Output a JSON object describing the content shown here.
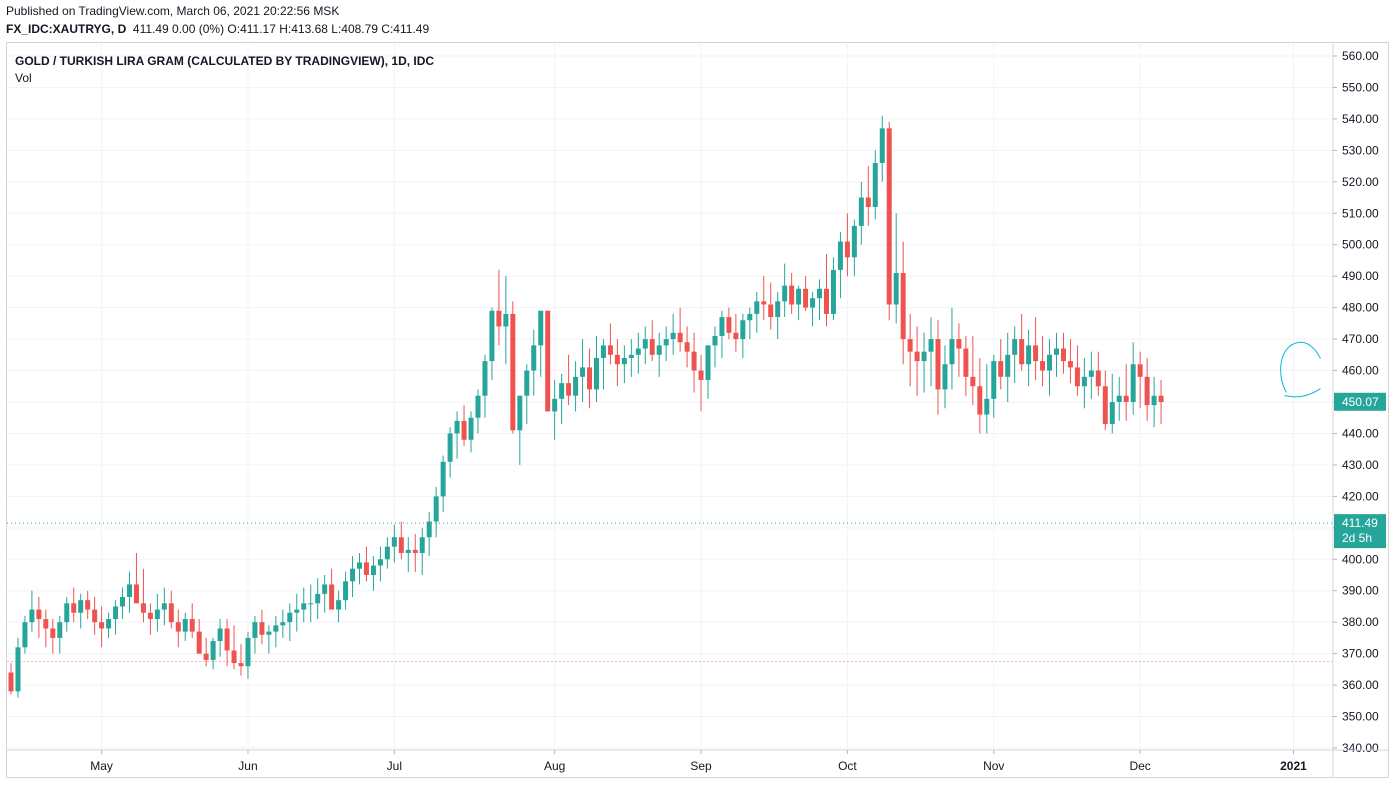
{
  "header": {
    "published": "Published on TradingView.com, March 06, 2021 20:22:56 MSK",
    "symbol": "FX_IDC:XAUTRYG, D",
    "ohlc": "411.49 0.00 (0%) O:411.17 H:413.68 L:408.79 C:411.49"
  },
  "legend": {
    "title": "GOLD / TURKISH LIRA GRAM (CALCULATED BY TRADINGVIEW), 1D, IDC",
    "vol": "Vol"
  },
  "colors": {
    "up": "#26a69a",
    "down": "#ef5350",
    "grid": "#f0f3fa",
    "axis_text": "#131722",
    "price_tag": "#26a69a",
    "annotation": "#00bcd4"
  },
  "tags": {
    "last_price": "411.49",
    "countdown": "2d 5h",
    "cursor_price": "450.07"
  },
  "chart_data": {
    "type": "candlestick",
    "title": "GOLD / TURKISH LIRA GRAM (CALCULATED BY TRADINGVIEW), 1D, IDC",
    "ylim": [
      340,
      560
    ],
    "y_ticks": [
      "560.00",
      "550.00",
      "540.00",
      "530.00",
      "520.00",
      "510.00",
      "500.00",
      "490.00",
      "480.00",
      "470.00",
      "460.00",
      "450.00",
      "440.00",
      "430.00",
      "420.00",
      "410.00",
      "400.00",
      "390.00",
      "380.00",
      "370.00",
      "360.00",
      "350.00",
      "340.00"
    ],
    "x_labels": [
      {
        "label": "May",
        "bar": 13
      },
      {
        "label": "Jun",
        "bar": 34
      },
      {
        "label": "Jul",
        "bar": 55
      },
      {
        "label": "Aug",
        "bar": 78
      },
      {
        "label": "Sep",
        "bar": 99
      },
      {
        "label": "Oct",
        "bar": 120
      },
      {
        "label": "Nov",
        "bar": 141
      },
      {
        "label": "Dec",
        "bar": 162
      },
      {
        "label": "2021",
        "bar": 184
      }
    ],
    "grid": true,
    "last_price_line": 411.49,
    "reference_line": 367.5,
    "candles": [
      [
        364,
        367,
        357,
        358
      ],
      [
        358,
        375,
        356,
        372
      ],
      [
        372,
        382,
        370,
        380
      ],
      [
        380,
        390,
        377,
        384
      ],
      [
        384,
        388,
        375,
        381
      ],
      [
        381,
        384,
        372,
        378
      ],
      [
        378,
        381,
        370,
        375
      ],
      [
        375,
        382,
        370,
        380
      ],
      [
        380,
        388,
        377,
        386
      ],
      [
        386,
        391,
        380,
        383
      ],
      [
        383,
        389,
        378,
        387
      ],
      [
        387,
        390,
        381,
        384
      ],
      [
        384,
        388,
        376,
        380
      ],
      [
        380,
        385,
        372,
        378
      ],
      [
        378,
        383,
        375,
        381
      ],
      [
        381,
        387,
        376,
        385
      ],
      [
        385,
        391,
        381,
        388
      ],
      [
        388,
        396,
        383,
        392
      ],
      [
        392,
        402,
        386,
        386
      ],
      [
        386,
        397,
        380,
        383
      ],
      [
        383,
        386,
        376,
        381
      ],
      [
        381,
        389,
        377,
        384
      ],
      [
        384,
        391,
        379,
        386
      ],
      [
        386,
        390,
        378,
        380
      ],
      [
        380,
        384,
        372,
        377
      ],
      [
        377,
        383,
        374,
        381
      ],
      [
        381,
        386,
        375,
        377
      ],
      [
        377,
        381,
        370,
        370
      ],
      [
        370,
        375,
        366,
        368
      ],
      [
        368,
        375,
        365,
        374
      ],
      [
        374,
        381,
        369,
        378
      ],
      [
        378,
        381,
        366,
        371
      ],
      [
        371,
        379,
        365,
        367
      ],
      [
        367,
        373,
        363,
        366
      ],
      [
        366,
        377,
        362,
        375
      ],
      [
        375,
        382,
        370,
        380
      ],
      [
        380,
        384,
        373,
        376
      ],
      [
        376,
        379,
        370,
        377
      ],
      [
        377,
        382,
        372,
        379
      ],
      [
        379,
        384,
        375,
        380
      ],
      [
        380,
        386,
        374,
        383
      ],
      [
        383,
        389,
        377,
        384
      ],
      [
        384,
        391,
        380,
        386
      ],
      [
        386,
        392,
        380,
        386
      ],
      [
        386,
        394,
        381,
        389
      ],
      [
        389,
        395,
        383,
        392
      ],
      [
        392,
        397,
        384,
        384
      ],
      [
        384,
        390,
        380,
        387
      ],
      [
        387,
        396,
        384,
        393
      ],
      [
        393,
        401,
        388,
        397
      ],
      [
        397,
        402,
        392,
        399
      ],
      [
        399,
        404,
        393,
        395
      ],
      [
        395,
        401,
        390,
        398
      ],
      [
        398,
        404,
        393,
        400
      ],
      [
        400,
        407,
        397,
        404
      ],
      [
        404,
        411,
        399,
        407
      ],
      [
        407,
        412,
        400,
        402
      ],
      [
        402,
        407,
        396,
        403
      ],
      [
        403,
        408,
        396,
        402
      ],
      [
        402,
        410,
        395,
        407
      ],
      [
        407,
        415,
        401,
        412
      ],
      [
        412,
        423,
        407,
        420
      ],
      [
        420,
        433,
        415,
        431
      ],
      [
        431,
        442,
        426,
        440
      ],
      [
        440,
        447,
        432,
        444
      ],
      [
        444,
        449,
        436,
        438
      ],
      [
        438,
        447,
        434,
        445
      ],
      [
        445,
        454,
        440,
        452
      ],
      [
        452,
        465,
        445,
        463
      ],
      [
        463,
        480,
        457,
        479
      ],
      [
        479,
        492,
        468,
        474
      ],
      [
        474,
        490,
        462,
        478
      ],
      [
        478,
        482,
        440,
        441
      ],
      [
        441,
        452,
        430,
        452
      ],
      [
        452,
        462,
        443,
        460
      ],
      [
        460,
        473,
        452,
        468
      ],
      [
        468,
        478,
        458,
        479
      ],
      [
        479,
        479,
        447,
        447
      ],
      [
        447,
        457,
        438,
        451
      ],
      [
        451,
        459,
        443,
        456
      ],
      [
        456,
        465,
        449,
        452
      ],
      [
        452,
        463,
        447,
        458
      ],
      [
        458,
        470,
        450,
        461
      ],
      [
        461,
        467,
        448,
        454
      ],
      [
        454,
        471,
        450,
        464
      ],
      [
        464,
        470,
        454,
        468
      ],
      [
        468,
        475,
        462,
        465
      ],
      [
        465,
        470,
        455,
        462
      ],
      [
        462,
        468,
        456,
        464
      ],
      [
        464,
        470,
        458,
        465
      ],
      [
        465,
        472,
        459,
        467
      ],
      [
        467,
        474,
        462,
        470
      ],
      [
        470,
        476,
        463,
        465
      ],
      [
        465,
        472,
        458,
        468
      ],
      [
        468,
        474,
        463,
        470
      ],
      [
        470,
        478,
        465,
        472
      ],
      [
        472,
        480,
        466,
        469
      ],
      [
        469,
        474,
        461,
        466
      ],
      [
        466,
        472,
        453,
        460
      ],
      [
        460,
        465,
        447,
        457
      ],
      [
        457,
        467,
        451,
        468
      ],
      [
        468,
        474,
        461,
        471
      ],
      [
        471,
        479,
        464,
        477
      ],
      [
        477,
        480,
        470,
        472
      ],
      [
        472,
        478,
        466,
        470
      ],
      [
        470,
        478,
        464,
        476
      ],
      [
        476,
        480,
        470,
        478
      ],
      [
        478,
        485,
        472,
        482
      ],
      [
        482,
        490,
        476,
        481
      ],
      [
        481,
        488,
        473,
        477
      ],
      [
        477,
        485,
        470,
        482
      ],
      [
        482,
        494,
        477,
        487
      ],
      [
        487,
        491,
        478,
        481
      ],
      [
        481,
        487,
        476,
        486
      ],
      [
        486,
        490,
        479,
        480
      ],
      [
        480,
        485,
        474,
        483
      ],
      [
        483,
        489,
        476,
        486
      ],
      [
        486,
        497,
        474,
        478
      ],
      [
        478,
        496,
        476,
        492
      ],
      [
        492,
        504,
        483,
        501
      ],
      [
        501,
        510,
        490,
        496
      ],
      [
        496,
        508,
        490,
        506
      ],
      [
        506,
        520,
        500,
        515
      ],
      [
        515,
        525,
        506,
        512
      ],
      [
        512,
        530,
        508,
        526
      ],
      [
        526,
        541,
        520,
        537
      ],
      [
        537,
        539,
        476,
        481
      ],
      [
        481,
        510,
        475,
        491
      ],
      [
        491,
        501,
        462,
        470
      ],
      [
        470,
        478,
        455,
        466
      ],
      [
        466,
        474,
        452,
        463
      ],
      [
        463,
        472,
        453,
        466
      ],
      [
        466,
        477,
        455,
        470
      ],
      [
        470,
        476,
        446,
        454
      ],
      [
        454,
        468,
        448,
        462
      ],
      [
        462,
        480,
        454,
        470
      ],
      [
        470,
        475,
        458,
        467
      ],
      [
        467,
        471,
        452,
        458
      ],
      [
        458,
        471,
        449,
        455
      ],
      [
        455,
        464,
        440,
        446
      ],
      [
        446,
        462,
        440,
        451
      ],
      [
        451,
        465,
        445,
        463
      ],
      [
        463,
        470,
        454,
        458
      ],
      [
        458,
        472,
        450,
        465
      ],
      [
        465,
        474,
        456,
        470
      ],
      [
        470,
        478,
        460,
        462
      ],
      [
        462,
        473,
        455,
        468
      ],
      [
        468,
        477,
        457,
        463
      ],
      [
        463,
        471,
        455,
        460
      ],
      [
        460,
        470,
        452,
        465
      ],
      [
        465,
        472,
        458,
        467
      ],
      [
        467,
        472,
        459,
        463
      ],
      [
        463,
        470,
        456,
        461
      ],
      [
        461,
        468,
        452,
        455
      ],
      [
        455,
        464,
        448,
        458
      ],
      [
        458,
        466,
        451,
        460
      ],
      [
        460,
        466,
        452,
        455
      ],
      [
        455,
        460,
        441,
        443
      ],
      [
        443,
        459,
        440,
        450
      ],
      [
        450,
        458,
        444,
        452
      ],
      [
        452,
        462,
        444,
        450
      ],
      [
        450,
        469,
        446,
        462
      ],
      [
        462,
        466,
        448,
        458
      ],
      [
        458,
        464,
        444,
        449
      ],
      [
        449,
        458,
        442,
        452
      ],
      [
        452,
        457,
        443,
        450
      ]
    ]
  }
}
